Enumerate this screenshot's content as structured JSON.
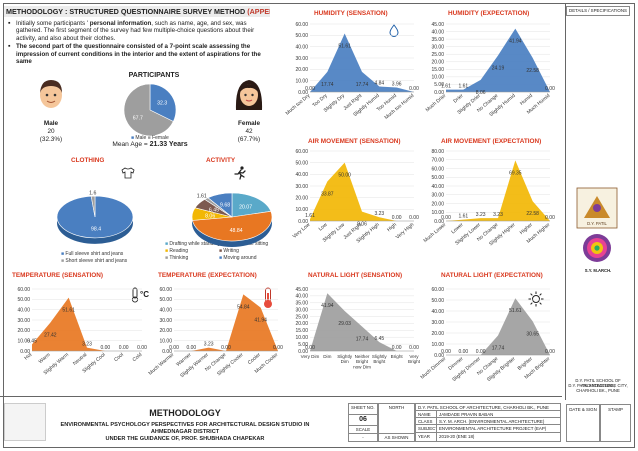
{
  "header": {
    "title": "METHODOLOGY : STRUCTURED QUESTIONNAIRE SURVEY METHOD",
    "appendix": "(APPENDIX-I)"
  },
  "intro": {
    "bullet1_pre": "Initially some participants ' ",
    "bullet1_bold": "personal information",
    "bullet1_post": ", such as name, age, and sex, was gathered. The first segment of the survey had few multiple-choice questions about their activity, and also about their clothes.",
    "bullet2": "The second part of the questionnaire consisted of a 7-point scale assessing the impression of current conditions in the interior and the extent of aspirations for the same"
  },
  "participants": {
    "title": "PARTICIPANTS",
    "male_label": "Male",
    "male_count": "20",
    "male_pct": "(32.3%)",
    "female_label": "Female",
    "female_count": "42",
    "female_pct": "(67.7%)",
    "mean_age_label": "Mean Age =",
    "mean_age_value": "21.33 Years",
    "legend_male": "Male",
    "legend_female": "Female"
  },
  "colors": {
    "accent_red": "#d9381e",
    "blue": "#4a7fc1",
    "grey": "#9e9e9e",
    "orange": "#e87722",
    "yellow": "#f2b705",
    "teal": "#5aa9c9",
    "brown": "#7d5a50"
  },
  "activity_legend": [
    "Drafting while standing",
    "Drafting while sitting",
    "Reading",
    "Writing",
    "Thinking",
    "Moving around"
  ],
  "clothing_legend": [
    "Full sleeve shirt and jeans",
    "Short sleeve shirt and jeans"
  ],
  "chart_data": [
    {
      "id": "participants",
      "type": "pie",
      "title": "PARTICIPANTS",
      "labels": [
        "Male",
        "Female"
      ],
      "values": [
        32.3,
        67.7
      ]
    },
    {
      "id": "clothing",
      "type": "pie",
      "title": "CLOTHING",
      "labels": [
        "Full sleeve shirt and jeans",
        "Short sleeve shirt and jeans"
      ],
      "values": [
        98.4,
        1.6
      ]
    },
    {
      "id": "activity",
      "type": "pie",
      "title": "ACTIVITY",
      "labels": [
        "Drafting while standing",
        "Drafting while sitting",
        "Reading",
        "Writing",
        "Thinking",
        "Moving around"
      ],
      "values": [
        20.07,
        48.84,
        8.06,
        6.45,
        1.61,
        9.68
      ]
    },
    {
      "id": "humidity_sensation",
      "type": "area",
      "title": "HUMIDITY (SENSATION)",
      "categories": [
        "Much too Dry",
        "Too Dry",
        "Slightly Dry",
        "Just Right",
        "Slightly Humid",
        "Too Humid",
        "Much too Humid"
      ],
      "values": [
        0.0,
        17.74,
        51.61,
        17.74,
        4.84,
        3.96,
        0.0
      ],
      "ylim": [
        0,
        60
      ],
      "yticks": [
        "0.00",
        "10.00",
        "20.00",
        "30.00",
        "40.00",
        "50.00",
        "60.00"
      ]
    },
    {
      "id": "humidity_expectation",
      "type": "area",
      "title": "HUMIDITY (EXPECTATION)",
      "categories": [
        "Much Drier",
        "Drier",
        "Slightly Drier",
        "No Change",
        "Slightly Humid",
        "Humid",
        "Much Humid"
      ],
      "values": [
        1.61,
        1.61,
        8.06,
        24.19,
        41.94,
        22.58,
        0.0
      ],
      "ylim": [
        0,
        45
      ],
      "yticks": [
        "0.00",
        "5.00",
        "10.00",
        "15.00",
        "20.00",
        "25.00",
        "30.00",
        "35.00",
        "40.00",
        "45.00"
      ]
    },
    {
      "id": "air_movement_sensation",
      "type": "area",
      "title": "AIR MOVEMENT (SENSATION)",
      "categories": [
        "Very Low",
        "Low",
        "Slightly Low",
        "Just Right",
        "Slightly High",
        "High",
        "Very High"
      ],
      "values": [
        1.61,
        33.87,
        50.0,
        8.06,
        3.23,
        0.0,
        0.0
      ],
      "ylim": [
        0,
        60
      ],
      "yticks": [
        "0.00",
        "10.00",
        "20.00",
        "30.00",
        "40.00",
        "50.00",
        "60.00"
      ]
    },
    {
      "id": "air_movement_expectation",
      "type": "area",
      "title": "AIR MOVEMENT (EXPECTATION)",
      "categories": [
        "Much Lower",
        "Lower",
        "Slightly Lower",
        "No Change",
        "Slightly Higher",
        "Higher",
        "Much Higher"
      ],
      "values": [
        0.0,
        1.61,
        3.23,
        3.23,
        69.35,
        22.58,
        0.0
      ],
      "ylim": [
        0,
        80
      ],
      "yticks": [
        "0.00",
        "10.00",
        "20.00",
        "30.00",
        "40.00",
        "50.00",
        "60.00",
        "70.00",
        "80.00"
      ]
    },
    {
      "id": "temperature_sensation",
      "type": "area",
      "title": "TEMPERATURE (SENSATION)",
      "categories": [
        "Hot",
        "Warm",
        "Slightly Warm",
        "Neutral",
        "Slightly Cool",
        "Cool",
        "Cold"
      ],
      "values": [
        6.45,
        27.42,
        51.61,
        3.23,
        0.0,
        0.0,
        0.0
      ],
      "ylim": [
        0,
        60
      ],
      "yticks": [
        "0.00",
        "10.00",
        "20.00",
        "30.00",
        "40.00",
        "50.00",
        "60.00"
      ]
    },
    {
      "id": "temperature_expectation",
      "type": "area",
      "title": "TEMPERATURE (EXPECTATION)",
      "categories": [
        "Much Warmer",
        "Warmer",
        "Slightly Warmer",
        "No Change",
        "Slightly Cooler",
        "Cooler",
        "Much Cooler"
      ],
      "values": [
        0.0,
        0.0,
        3.23,
        0.0,
        54.84,
        41.94,
        0.0
      ],
      "ylim": [
        0,
        60
      ],
      "yticks": [
        "0.00",
        "10.00",
        "20.00",
        "30.00",
        "40.00",
        "50.00",
        "60.00"
      ]
    },
    {
      "id": "natural_light_sensation",
      "type": "area",
      "title": "NATURAL LIGHT (SENSATION)",
      "categories": [
        "Very Dim",
        "Dim",
        "Slightly Dim",
        "Neither Bright now Dim",
        "Slightly Bright",
        "Bright",
        "Very Bright"
      ],
      "values": [
        0.0,
        41.94,
        29.03,
        17.74,
        6.45,
        0.0,
        0.0
      ],
      "ylim": [
        0,
        45
      ],
      "yticks": [
        "0.00",
        "5.00",
        "10.00",
        "15.00",
        "20.00",
        "25.00",
        "30.00",
        "35.00",
        "40.00",
        "45.00"
      ]
    },
    {
      "id": "natural_light_expectation",
      "type": "area",
      "title": "NATURAL LIGHT (EXPECTATION)",
      "categories": [
        "Much Dimmer",
        "Dimmer",
        "Slightly Dimmer",
        "No Change",
        "Slightly Brighter",
        "Brighter",
        "Much Brighter"
      ],
      "values": [
        0.0,
        0.0,
        0.0,
        17.74,
        51.61,
        30.65,
        0.0
      ],
      "ylim": [
        0,
        60
      ],
      "yticks": [
        "0.00",
        "10.00",
        "20.00",
        "30.00",
        "40.00",
        "50.00",
        "60.00"
      ]
    }
  ],
  "title_block": {
    "title": "METHODOLOGY",
    "subtitle": "ENVIRONMENTAL PSYCHOLOGY PERSPECTIVES FOR ARCHITECTURAL DESIGN STUDIO IN AHMEDNAGAR DISTRICT",
    "guidance": "UNDER THE GUIDANCE OF, PROF. SHUBHADA CHAPEKAR",
    "sheet_no_label": "SHEET NO.",
    "sheet_no": "06",
    "scale_label": "SCALE",
    "scale_value": "-",
    "north_label": "NORTH",
    "as_shown": "AS SHOWN",
    "college": "D.Y. PATIL SCHOOL OF ARCHITECTURE, CHARHOLI BK., PUNE",
    "name_label": "NAME",
    "name_value": "JAMDADE PRAVIN BABAN",
    "class_label": "CLASS",
    "class_value": "S.Y. M. ARCH. (ENVIRONMENTAL ARCHITECTURE)",
    "subject_label": "SUBJECT",
    "subject_value": "ENVIRONMENTAL ARCHITECTURE PROJECT (EAP)",
    "year_label": "YEAR",
    "year_value": "2019-20 (ENE 18)"
  },
  "side_panel": {
    "details": "DETAILS / SPECIFICATIONS",
    "logo_caption": "D.Y. PATIL",
    "logo_sub": "S.Y. M.ARCH.",
    "college_line1": "D.Y. PATIL SCHOOL OF ARCHITECTURE,",
    "college_line2": "D.Y. PATIL KNOWLEDGE CITY,",
    "college_line3": "CHARHOLI BK., PUNE",
    "date_sign": "DATE & SIGN",
    "stamp": "STAMP"
  }
}
